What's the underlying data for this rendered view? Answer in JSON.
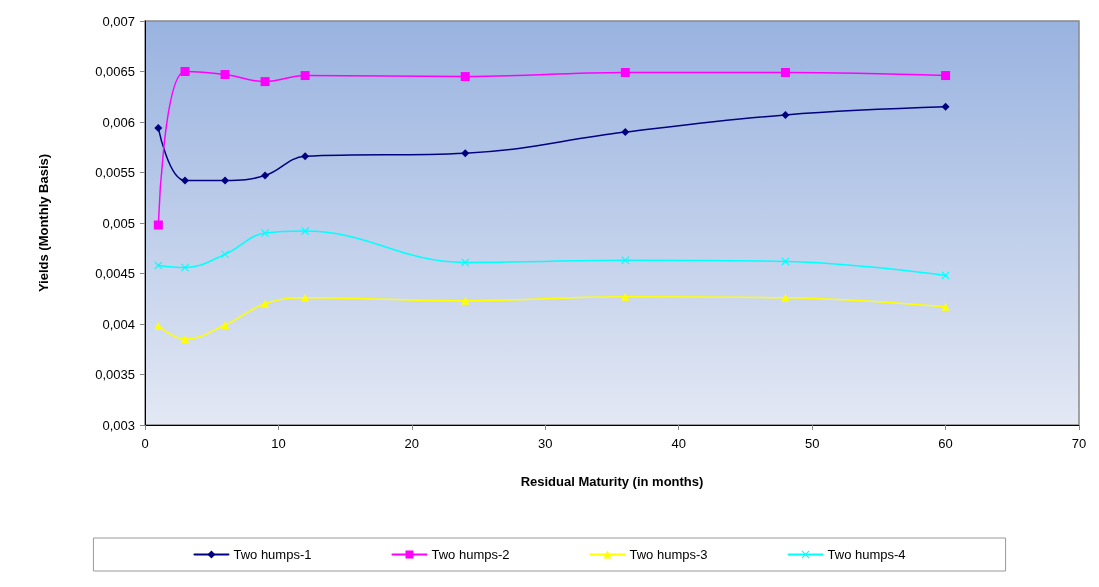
{
  "chart_data": {
    "type": "line",
    "xlabel": "Residual Maturity (in months)",
    "ylabel": "Yields (Monthly Basis)",
    "x": [
      1,
      3,
      6,
      9,
      12,
      24,
      36,
      48,
      60
    ],
    "series": [
      {
        "name": "Two humps-1",
        "color": "#000080",
        "marker": "diamond",
        "values": [
          0.00594,
          0.00542,
          0.00542,
          0.00547,
          0.00566,
          0.00569,
          0.0059,
          0.00607,
          0.00615
        ]
      },
      {
        "name": "Two humps-2",
        "color": "#ff00ff",
        "marker": "square",
        "values": [
          0.00498,
          0.0065,
          0.00647,
          0.0064,
          0.00646,
          0.00645,
          0.00649,
          0.00649,
          0.00646
        ]
      },
      {
        "name": "Two humps-3",
        "color": "#ffff00",
        "marker": "triangle",
        "values": [
          0.00398,
          0.00385,
          0.00399,
          0.0042,
          0.00426,
          0.00423,
          0.00427,
          0.00426,
          0.00417
        ]
      },
      {
        "name": "Two humps-4",
        "color": "#00ffff",
        "marker": "cross",
        "values": [
          0.00458,
          0.00456,
          0.00469,
          0.0049,
          0.00492,
          0.00461,
          0.00463,
          0.00462,
          0.00448
        ]
      }
    ],
    "xlim": [
      0,
      70
    ],
    "xticks": [
      0,
      10,
      20,
      30,
      40,
      50,
      60,
      70
    ],
    "ylim": [
      0.003,
      0.007
    ],
    "yticks": [
      {
        "value": 0.003,
        "label": "0,003"
      },
      {
        "value": 0.0035,
        "label": "0,0035"
      },
      {
        "value": 0.004,
        "label": "0,004"
      },
      {
        "value": 0.0045,
        "label": "0,0045"
      },
      {
        "value": 0.005,
        "label": "0,005"
      },
      {
        "value": 0.0055,
        "label": "0,0055"
      },
      {
        "value": 0.006,
        "label": "0,006"
      },
      {
        "value": 0.0065,
        "label": "0,0065"
      },
      {
        "value": 0.007,
        "label": "0,007"
      }
    ],
    "grid": false,
    "legend": "bottom",
    "line_style": "solid"
  }
}
